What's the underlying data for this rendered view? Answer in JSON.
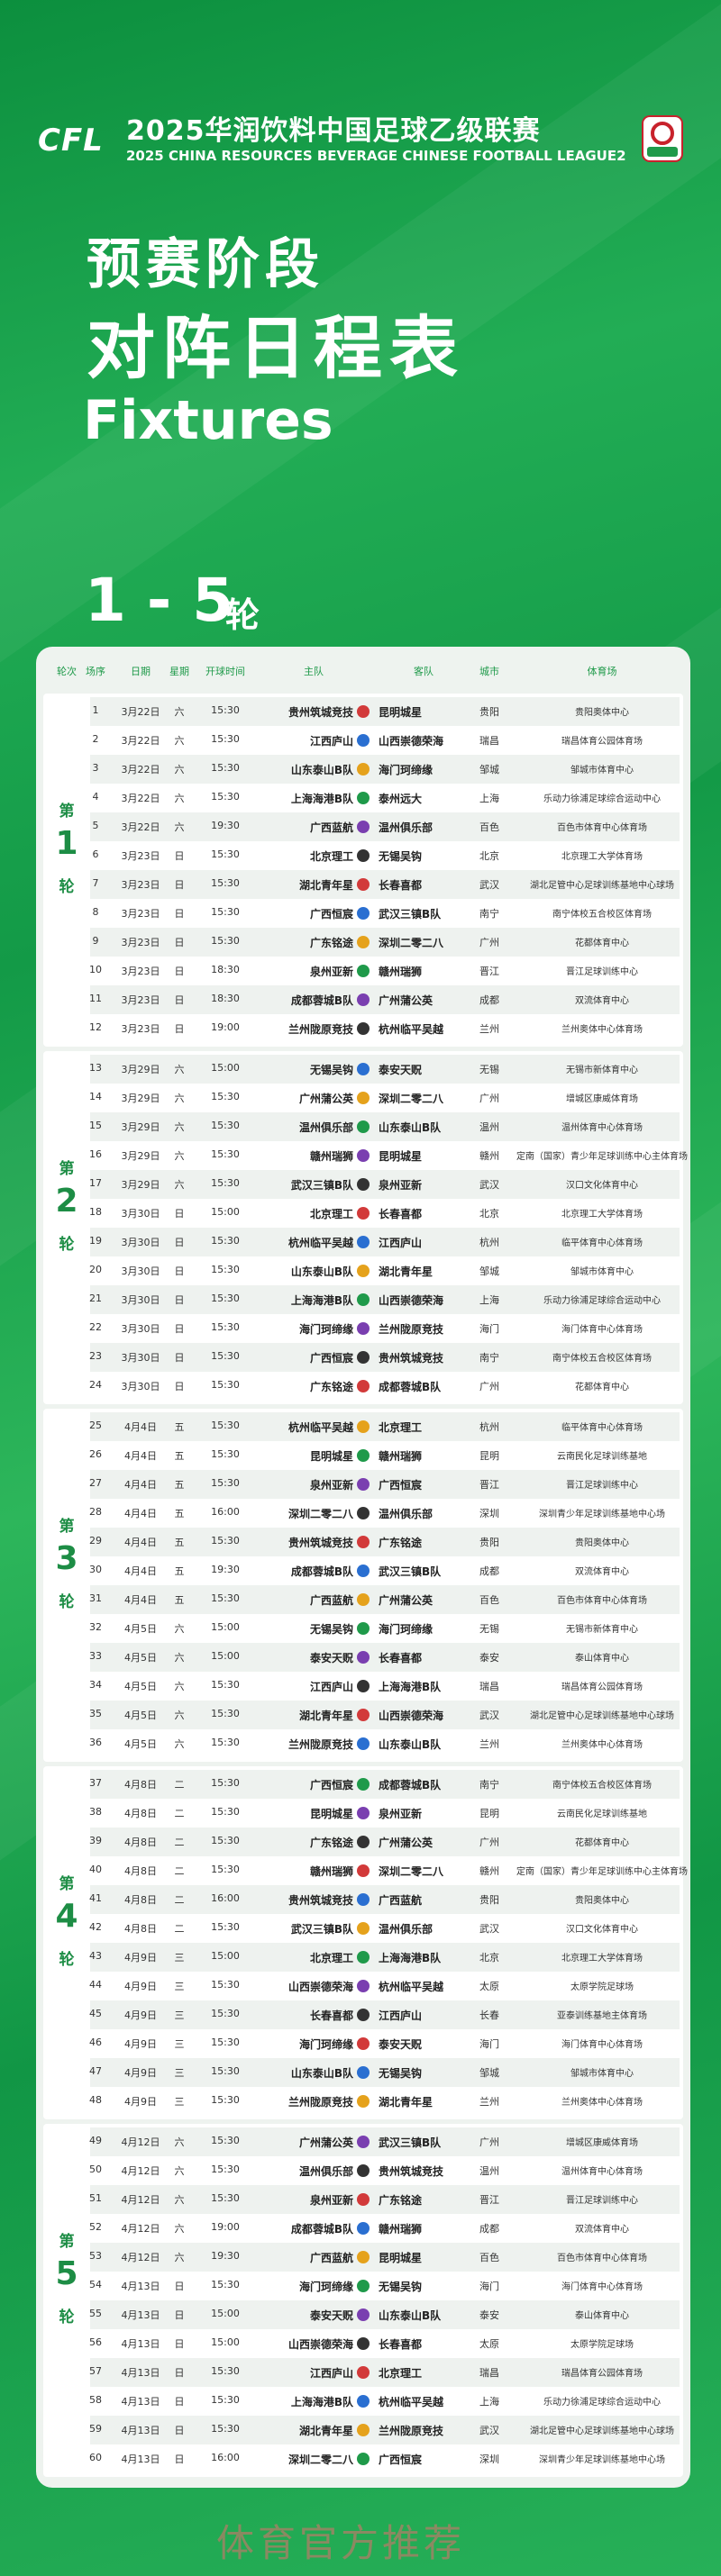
{
  "header": {
    "logo": "CFL",
    "league_cn": "2025华润饮料中国足球乙级联赛",
    "league_en": "2025 CHINA RESOURCES BEVERAGE CHINESE FOOTBALL LEAGUE2"
  },
  "title_line1": "预赛阶段",
  "title_line2": "对阵日程表",
  "title_en": "Fixtures",
  "round_range": "1 - 5",
  "round_range_unit": "轮",
  "table": {
    "columns": [
      "轮次",
      "场序",
      "日期",
      "星期",
      "开球时间",
      "主队",
      "客队",
      "城市",
      "体育场"
    ],
    "rounds": [
      {
        "prefix": "第",
        "number": "1",
        "suffix": "轮",
        "matches": [
          [
            "1",
            "3月22日",
            "六",
            "15:30",
            "贵州筑城竞技",
            "昆明城星",
            "贵阳",
            "贵阳奥体中心"
          ],
          [
            "2",
            "3月22日",
            "六",
            "15:30",
            "江西庐山",
            "山西崇德荣海",
            "瑞昌",
            "瑞昌体育公园体育场"
          ],
          [
            "3",
            "3月22日",
            "六",
            "15:30",
            "山东泰山B队",
            "海门珂缔缘",
            "邹城",
            "邹城市体育中心"
          ],
          [
            "4",
            "3月22日",
            "六",
            "15:30",
            "上海海港B队",
            "泰州远大",
            "上海",
            "乐动力徐浦足球综合运动中心"
          ],
          [
            "5",
            "3月22日",
            "六",
            "19:30",
            "广西蓝航",
            "温州俱乐部",
            "百色",
            "百色市体育中心体育场"
          ],
          [
            "6",
            "3月23日",
            "日",
            "15:30",
            "北京理工",
            "无锡吴钩",
            "北京",
            "北京理工大学体育场"
          ],
          [
            "7",
            "3月23日",
            "日",
            "15:30",
            "湖北青年星",
            "长春喜都",
            "武汉",
            "湖北足管中心足球训练基地中心球场"
          ],
          [
            "8",
            "3月23日",
            "日",
            "15:30",
            "广西恒宸",
            "武汉三镇B队",
            "南宁",
            "南宁体校五合校区体育场"
          ],
          [
            "9",
            "3月23日",
            "日",
            "15:30",
            "广东铭途",
            "深圳二零二八",
            "广州",
            "花都体育中心"
          ],
          [
            "10",
            "3月23日",
            "日",
            "18:30",
            "泉州亚新",
            "赣州瑞狮",
            "晋江",
            "晋江足球训练中心"
          ],
          [
            "11",
            "3月23日",
            "日",
            "18:30",
            "成都蓉城B队",
            "广州蒲公英",
            "成都",
            "双流体育中心"
          ],
          [
            "12",
            "3月23日",
            "日",
            "19:00",
            "兰州陇原竞技",
            "杭州临平吴越",
            "兰州",
            "兰州奥体中心体育场"
          ]
        ]
      },
      {
        "prefix": "第",
        "number": "2",
        "suffix": "轮",
        "matches": [
          [
            "13",
            "3月29日",
            "六",
            "15:00",
            "无锡吴钩",
            "泰安天贶",
            "无锡",
            "无锡市新体育中心"
          ],
          [
            "14",
            "3月29日",
            "六",
            "15:30",
            "广州蒲公英",
            "深圳二零二八",
            "广州",
            "增城区康威体育场"
          ],
          [
            "15",
            "3月29日",
            "六",
            "15:30",
            "温州俱乐部",
            "山东泰山B队",
            "温州",
            "温州体育中心体育场"
          ],
          [
            "16",
            "3月29日",
            "六",
            "15:30",
            "赣州瑞狮",
            "昆明城星",
            "赣州",
            "定南（国家）青少年足球训练中心主体育场"
          ],
          [
            "17",
            "3月29日",
            "六",
            "15:30",
            "武汉三镇B队",
            "泉州亚新",
            "武汉",
            "汉口文化体育中心"
          ],
          [
            "18",
            "3月30日",
            "日",
            "15:00",
            "北京理工",
            "长春喜都",
            "北京",
            "北京理工大学体育场"
          ],
          [
            "19",
            "3月30日",
            "日",
            "15:30",
            "杭州临平吴越",
            "江西庐山",
            "杭州",
            "临平体育中心体育场"
          ],
          [
            "20",
            "3月30日",
            "日",
            "15:30",
            "山东泰山B队",
            "湖北青年星",
            "邹城",
            "邹城市体育中心"
          ],
          [
            "21",
            "3月30日",
            "日",
            "15:30",
            "上海海港B队",
            "山西崇德荣海",
            "上海",
            "乐动力徐浦足球综合运动中心"
          ],
          [
            "22",
            "3月30日",
            "日",
            "15:30",
            "海门珂缔缘",
            "兰州陇原竞技",
            "海门",
            "海门体育中心体育场"
          ],
          [
            "23",
            "3月30日",
            "日",
            "15:30",
            "广西恒宸",
            "贵州筑城竞技",
            "南宁",
            "南宁体校五合校区体育场"
          ],
          [
            "24",
            "3月30日",
            "日",
            "15:30",
            "广东铭途",
            "成都蓉城B队",
            "广州",
            "花都体育中心"
          ]
        ]
      },
      {
        "prefix": "第",
        "number": "3",
        "suffix": "轮",
        "matches": [
          [
            "25",
            "4月4日",
            "五",
            "15:30",
            "杭州临平吴越",
            "北京理工",
            "杭州",
            "临平体育中心体育场"
          ],
          [
            "26",
            "4月4日",
            "五",
            "15:30",
            "昆明城星",
            "赣州瑞狮",
            "昆明",
            "云南民化足球训练基地"
          ],
          [
            "27",
            "4月4日",
            "五",
            "15:30",
            "泉州亚新",
            "广西恒宸",
            "晋江",
            "晋江足球训练中心"
          ],
          [
            "28",
            "4月4日",
            "五",
            "16:00",
            "深圳二零二八",
            "温州俱乐部",
            "深圳",
            "深圳青少年足球训练基地中心场"
          ],
          [
            "29",
            "4月4日",
            "五",
            "15:30",
            "贵州筑城竞技",
            "广东铭途",
            "贵阳",
            "贵阳奥体中心"
          ],
          [
            "30",
            "4月4日",
            "五",
            "19:30",
            "成都蓉城B队",
            "武汉三镇B队",
            "成都",
            "双流体育中心"
          ],
          [
            "31",
            "4月4日",
            "五",
            "15:30",
            "广西蓝航",
            "广州蒲公英",
            "百色",
            "百色市体育中心体育场"
          ],
          [
            "32",
            "4月5日",
            "六",
            "15:00",
            "无锡吴钩",
            "海门珂缔缘",
            "无锡",
            "无锡市新体育中心"
          ],
          [
            "33",
            "4月5日",
            "六",
            "15:00",
            "泰安天贶",
            "长春喜都",
            "泰安",
            "泰山体育中心"
          ],
          [
            "34",
            "4月5日",
            "六",
            "15:30",
            "江西庐山",
            "上海海港B队",
            "瑞昌",
            "瑞昌体育公园体育场"
          ],
          [
            "35",
            "4月5日",
            "六",
            "15:30",
            "湖北青年星",
            "山西崇德荣海",
            "武汉",
            "湖北足管中心足球训练基地中心球场"
          ],
          [
            "36",
            "4月5日",
            "六",
            "15:30",
            "兰州陇原竞技",
            "山东泰山B队",
            "兰州",
            "兰州奥体中心体育场"
          ]
        ]
      },
      {
        "prefix": "第",
        "number": "4",
        "suffix": "轮",
        "matches": [
          [
            "37",
            "4月8日",
            "二",
            "15:30",
            "广西恒宸",
            "成都蓉城B队",
            "南宁",
            "南宁体校五合校区体育场"
          ],
          [
            "38",
            "4月8日",
            "二",
            "15:30",
            "昆明城星",
            "泉州亚新",
            "昆明",
            "云南民化足球训练基地"
          ],
          [
            "39",
            "4月8日",
            "二",
            "15:30",
            "广东铭途",
            "广州蒲公英",
            "广州",
            "花都体育中心"
          ],
          [
            "40",
            "4月8日",
            "二",
            "15:30",
            "赣州瑞狮",
            "深圳二零二八",
            "赣州",
            "定南（国家）青少年足球训练中心主体育场"
          ],
          [
            "41",
            "4月8日",
            "二",
            "16:00",
            "贵州筑城竞技",
            "广西蓝航",
            "贵阳",
            "贵阳奥体中心"
          ],
          [
            "42",
            "4月8日",
            "二",
            "15:30",
            "武汉三镇B队",
            "温州俱乐部",
            "武汉",
            "汉口文化体育中心"
          ],
          [
            "43",
            "4月9日",
            "三",
            "15:00",
            "北京理工",
            "上海海港B队",
            "北京",
            "北京理工大学体育场"
          ],
          [
            "44",
            "4月9日",
            "三",
            "15:30",
            "山西崇德荣海",
            "杭州临平吴越",
            "太原",
            "太原学院足球场"
          ],
          [
            "45",
            "4月9日",
            "三",
            "15:30",
            "长春喜都",
            "江西庐山",
            "长春",
            "亚泰训练基地主体育场"
          ],
          [
            "46",
            "4月9日",
            "三",
            "15:30",
            "海门珂缔缘",
            "泰安天贶",
            "海门",
            "海门体育中心体育场"
          ],
          [
            "47",
            "4月9日",
            "三",
            "15:30",
            "山东泰山B队",
            "无锡吴钩",
            "邹城",
            "邹城市体育中心"
          ],
          [
            "48",
            "4月9日",
            "三",
            "15:30",
            "兰州陇原竞技",
            "湖北青年星",
            "兰州",
            "兰州奥体中心体育场"
          ]
        ]
      },
      {
        "prefix": "第",
        "number": "5",
        "suffix": "轮",
        "matches": [
          [
            "49",
            "4月12日",
            "六",
            "15:30",
            "广州蒲公英",
            "武汉三镇B队",
            "广州",
            "增城区康威体育场"
          ],
          [
            "50",
            "4月12日",
            "六",
            "15:30",
            "温州俱乐部",
            "贵州筑城竞技",
            "温州",
            "温州体育中心体育场"
          ],
          [
            "51",
            "4月12日",
            "六",
            "15:30",
            "泉州亚新",
            "广东铭途",
            "晋江",
            "晋江足球训练中心"
          ],
          [
            "52",
            "4月12日",
            "六",
            "19:00",
            "成都蓉城B队",
            "赣州瑞狮",
            "成都",
            "双流体育中心"
          ],
          [
            "53",
            "4月12日",
            "六",
            "19:30",
            "广西蓝航",
            "昆明城星",
            "百色",
            "百色市体育中心体育场"
          ],
          [
            "54",
            "4月13日",
            "日",
            "15:30",
            "海门珂缔缘",
            "无锡吴钩",
            "海门",
            "海门体育中心体育场"
          ],
          [
            "55",
            "4月13日",
            "日",
            "15:00",
            "泰安天贶",
            "山东泰山B队",
            "泰安",
            "泰山体育中心"
          ],
          [
            "56",
            "4月13日",
            "日",
            "15:00",
            "山西崇德荣海",
            "长春喜都",
            "太原",
            "太原学院足球场"
          ],
          [
            "57",
            "4月13日",
            "日",
            "15:30",
            "江西庐山",
            "北京理工",
            "瑞昌",
            "瑞昌体育公园体育场"
          ],
          [
            "58",
            "4月13日",
            "日",
            "15:30",
            "上海海港B队",
            "杭州临平吴越",
            "上海",
            "乐动力徐浦足球综合运动中心"
          ],
          [
            "59",
            "4月13日",
            "日",
            "15:30",
            "湖北青年星",
            "兰州陇原竞技",
            "武汉",
            "湖北足管中心足球训练基地中心球场"
          ],
          [
            "60",
            "4月13日",
            "日",
            "16:00",
            "深圳二零二八",
            "广西恒宸",
            "深圳",
            "深圳青少年足球训练基地中心场"
          ]
        ]
      }
    ]
  },
  "watermark": "体育官方推荐"
}
